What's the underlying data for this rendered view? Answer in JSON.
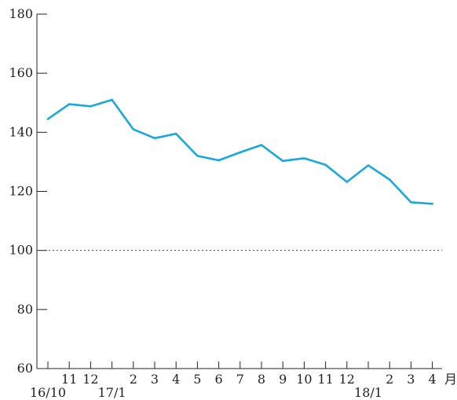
{
  "chart_data": {
    "type": "line",
    "title": "",
    "xlabel": "",
    "ylabel": "",
    "ylim": [
      60,
      180
    ],
    "yticks": [
      60,
      80,
      100,
      120,
      140,
      160,
      180
    ],
    "x_unit": "月",
    "reference_line": 100,
    "categories": [
      "2016-10",
      "2016-11",
      "2016-12",
      "2017-01",
      "2017-02",
      "2017-03",
      "2017-04",
      "2017-05",
      "2017-06",
      "2017-07",
      "2017-08",
      "2017-09",
      "2017-10",
      "2017-11",
      "2017-12",
      "2018-01",
      "2018-02",
      "2018-03",
      "2018-04"
    ],
    "month_labels": [
      "",
      "11",
      "12",
      "",
      "2",
      "3",
      "4",
      "5",
      "6",
      "7",
      "8",
      "9",
      "10",
      "11",
      "12",
      "",
      "2",
      "3",
      "4"
    ],
    "year_labels": [
      "16/10",
      "",
      "",
      "17/1",
      "",
      "",
      "",
      "",
      "",
      "",
      "",
      "",
      "",
      "",
      "",
      "18/1",
      "",
      "",
      ""
    ],
    "series": [
      {
        "values": [
          144.5,
          149.5,
          148.8,
          151.0,
          141.0,
          138.0,
          139.5,
          132.0,
          130.5,
          133.2,
          135.7,
          130.3,
          131.2,
          129.0,
          123.2,
          128.8,
          124.0,
          116.3,
          115.8
        ],
        "color": "#1aa7e0"
      }
    ],
    "grid": false
  }
}
